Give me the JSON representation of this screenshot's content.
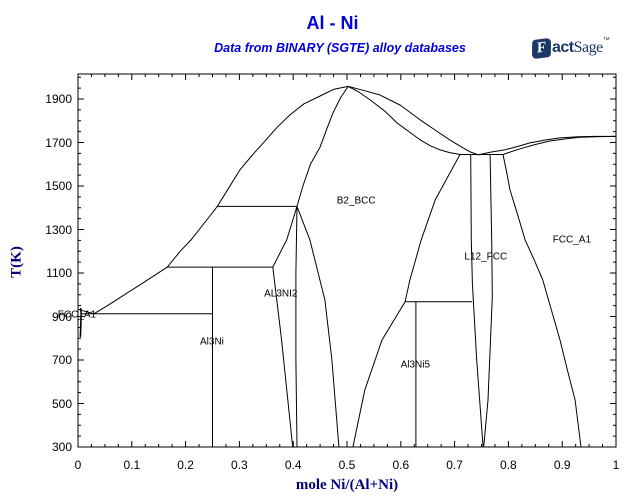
{
  "header": {
    "title": "Al - Ni",
    "subtitle": "Data from BINARY (SGTE) alloy databases",
    "logo": {
      "f": "F",
      "act": "act",
      "sage": "Sage",
      "tm": "™"
    }
  },
  "colors": {
    "title_blue": "#0000e0",
    "axis_navy": "#00007d",
    "logo_navy": "#1b3866",
    "line": "#000000",
    "background": "#ffffff"
  },
  "chart_data": {
    "type": "line",
    "title": "Al - Ni",
    "subtitle": "Data from BINARY (SGTE) alloy databases",
    "xlabel": "mole Ni/(Al+Ni)",
    "ylabel": "T(K)",
    "xlim": [
      0,
      1
    ],
    "ylim": [
      300,
      1900
    ],
    "grid": false,
    "line_color": "#000000",
    "x_ticks": {
      "values": [
        0,
        0.1,
        0.2,
        0.3,
        0.4,
        0.5,
        0.6,
        0.7,
        0.8,
        0.9,
        1
      ],
      "labels": [
        "0",
        "0.1",
        "0.2",
        "0.3",
        "0.4",
        "0.5",
        "0.6",
        "0.7",
        "0.8",
        "0.9",
        "1"
      ]
    },
    "y_ticks": {
      "values": [
        300,
        500,
        700,
        900,
        1100,
        1300,
        1500,
        1700,
        1900
      ],
      "labels": [
        "300",
        "500",
        "700",
        "900",
        "1100",
        "1300",
        "1500",
        "1700",
        "1900"
      ]
    },
    "x_minor_step": 0.025,
    "y_minor_step": 50,
    "curves": [
      {
        "name": "liquidus-al-side",
        "points": [
          [
            0,
            933
          ],
          [
            0.013,
            924
          ],
          [
            0.03,
            913
          ]
        ]
      },
      {
        "name": "fcc-a1-al-solvus",
        "w": 1.6,
        "points": [
          [
            0.005,
            936
          ],
          [
            0.006,
            913
          ],
          [
            0.0045,
            808
          ]
        ]
      },
      {
        "name": "liquidus-left-of-peak",
        "points": [
          [
            0.03,
            913
          ],
          [
            0.055,
            950
          ],
          [
            0.08,
            990
          ],
          [
            0.12,
            1053
          ],
          [
            0.166,
            1127
          ],
          [
            0.19,
            1200
          ],
          [
            0.21,
            1252
          ],
          [
            0.235,
            1330
          ],
          [
            0.259,
            1406
          ],
          [
            0.28,
            1490
          ],
          [
            0.301,
            1574
          ],
          [
            0.325,
            1645
          ],
          [
            0.349,
            1711
          ],
          [
            0.37,
            1770
          ],
          [
            0.394,
            1827
          ],
          [
            0.42,
            1878
          ],
          [
            0.45,
            1914
          ],
          [
            0.475,
            1944
          ],
          [
            0.502,
            1958
          ]
        ]
      },
      {
        "name": "b2-solidus-left",
        "points": [
          [
            0.407,
            1406
          ],
          [
            0.418,
            1500
          ],
          [
            0.432,
            1600
          ],
          [
            0.45,
            1679
          ],
          [
            0.462,
            1760
          ],
          [
            0.474,
            1836
          ],
          [
            0.488,
            1905
          ],
          [
            0.502,
            1958
          ]
        ]
      },
      {
        "name": "liquidus-right-of-peak",
        "points": [
          [
            0.502,
            1958
          ],
          [
            0.53,
            1940
          ],
          [
            0.561,
            1919
          ],
          [
            0.6,
            1870
          ],
          [
            0.636,
            1804
          ],
          [
            0.665,
            1755
          ],
          [
            0.691,
            1712
          ],
          [
            0.714,
            1678
          ],
          [
            0.729,
            1657
          ],
          [
            0.744,
            1643
          ],
          [
            0.766,
            1655
          ],
          [
            0.794,
            1667
          ],
          [
            0.82,
            1684
          ],
          [
            0.84,
            1698
          ],
          [
            0.87,
            1712
          ],
          [
            0.896,
            1721
          ],
          [
            0.93,
            1726
          ],
          [
            0.96,
            1728
          ],
          [
            1,
            1728
          ]
        ]
      },
      {
        "name": "b2-solidus-right",
        "points": [
          [
            0.502,
            1958
          ],
          [
            0.52,
            1935
          ],
          [
            0.543,
            1896
          ],
          [
            0.57,
            1845
          ],
          [
            0.593,
            1790
          ],
          [
            0.615,
            1750
          ],
          [
            0.636,
            1712
          ],
          [
            0.655,
            1685
          ],
          [
            0.673,
            1666
          ],
          [
            0.69,
            1654
          ],
          [
            0.71,
            1645
          ]
        ]
      },
      {
        "name": "fcc-solidus-right",
        "points": [
          [
            0.79,
            1645
          ],
          [
            0.81,
            1662
          ],
          [
            0.822,
            1671
          ],
          [
            0.85,
            1691
          ],
          [
            0.877,
            1707
          ],
          [
            0.91,
            1718
          ],
          [
            0.933,
            1724
          ],
          [
            0.97,
            1727
          ],
          [
            1,
            1728
          ]
        ]
      },
      {
        "name": "eutectic-tie-913K",
        "points": [
          [
            0.006,
            913
          ],
          [
            0.25,
            913
          ]
        ]
      },
      {
        "name": "peritectic-tie-1127K",
        "points": [
          [
            0.166,
            1127
          ],
          [
            0.362,
            1127
          ]
        ]
      },
      {
        "name": "peritectic-tie-1406K",
        "points": [
          [
            0.259,
            1406
          ],
          [
            0.407,
            1406
          ]
        ]
      },
      {
        "name": "invariant-tie-1645K",
        "points": [
          [
            0.71,
            1645
          ],
          [
            0.79,
            1645
          ]
        ]
      },
      {
        "name": "peritectoid-tie-968K",
        "points": [
          [
            0.608,
            968
          ],
          [
            0.732,
            968
          ]
        ]
      },
      {
        "name": "al3ni-stoichiometric-line",
        "points": [
          [
            0.25,
            300
          ],
          [
            0.25,
            1127
          ]
        ]
      },
      {
        "name": "al3ni5-stoichiometric-line",
        "points": [
          [
            0.628,
            300
          ],
          [
            0.628,
            968
          ]
        ]
      },
      {
        "name": "al3ni2-left-boundary",
        "points": [
          [
            0.407,
            1406
          ],
          [
            0.388,
            1252
          ],
          [
            0.362,
            1127
          ],
          [
            0.378,
            800
          ],
          [
            0.399,
            300
          ]
        ]
      },
      {
        "name": "al3ni2-right-boundary",
        "points": [
          [
            0.407,
            1406
          ],
          [
            0.405,
            1100
          ],
          [
            0.405,
            700
          ],
          [
            0.407,
            300
          ]
        ]
      },
      {
        "name": "b2-solvus-left",
        "points": [
          [
            0.407,
            1406
          ],
          [
            0.431,
            1252
          ],
          [
            0.459,
            976
          ],
          [
            0.472,
            700
          ],
          [
            0.485,
            300
          ]
        ]
      },
      {
        "name": "b2-solvus-right",
        "points": [
          [
            0.71,
            1645
          ],
          [
            0.664,
            1436
          ],
          [
            0.638,
            1252
          ],
          [
            0.617,
            1068
          ],
          [
            0.608,
            968
          ],
          [
            0.565,
            792
          ],
          [
            0.533,
            562
          ],
          [
            0.511,
            300
          ]
        ]
      },
      {
        "name": "l12-left-boundary",
        "points": [
          [
            0.73,
            1645
          ],
          [
            0.731,
            1250
          ],
          [
            0.733,
            1050
          ],
          [
            0.741,
            700
          ],
          [
            0.753,
            300
          ]
        ]
      },
      {
        "name": "l12-right-boundary",
        "points": [
          [
            0.766,
            1645
          ],
          [
            0.769,
            1250
          ],
          [
            0.77,
            990
          ],
          [
            0.762,
            516
          ],
          [
            0.754,
            300
          ]
        ]
      },
      {
        "name": "fcc-solvus-right-side",
        "points": [
          [
            0.79,
            1645
          ],
          [
            0.797,
            1560
          ],
          [
            0.803,
            1482
          ],
          [
            0.817,
            1370
          ],
          [
            0.831,
            1252
          ],
          [
            0.848,
            1160
          ],
          [
            0.864,
            1068
          ],
          [
            0.88,
            930
          ],
          [
            0.896,
            792
          ],
          [
            0.91,
            650
          ],
          [
            0.924,
            516
          ],
          [
            0.935,
            300
          ]
        ]
      }
    ],
    "phase_labels": [
      {
        "text": "FCC_A1",
        "x": -0.002,
        "t": 907
      },
      {
        "text": "Al3Ni",
        "x": 0.249,
        "t": 783
      },
      {
        "text": "AL3NI2",
        "x": 0.377,
        "t": 1003
      },
      {
        "text": "B2_BCC",
        "x": 0.517,
        "t": 1431
      },
      {
        "text": "Al3Ni5",
        "x": 0.627,
        "t": 677
      },
      {
        "text": "L12_FCC",
        "x": 0.758,
        "t": 1174
      },
      {
        "text": "FCC_A1",
        "x": 0.918,
        "t": 1252
      }
    ]
  }
}
